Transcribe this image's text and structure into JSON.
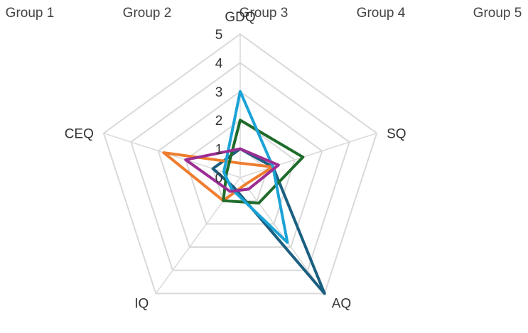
{
  "chart_data": {
    "type": "radar",
    "axes": [
      "GDQ",
      "SQ",
      "AQ",
      "IQ",
      "CEQ"
    ],
    "rmin": 0,
    "rmax": 5,
    "ticks": [
      "0",
      "1",
      "2",
      "3",
      "4",
      "5"
    ],
    "grid": true,
    "legend_placement": "top",
    "series": [
      {
        "name": "Group 1",
        "color": "#1a5f80",
        "values": [
          1.0,
          1.2,
          5.0,
          0.4,
          1.0
        ]
      },
      {
        "name": "Group 2",
        "color": "#ef7d2f",
        "values": [
          0.5,
          1.2,
          0.3,
          1.0,
          2.8
        ]
      },
      {
        "name": "Group 3",
        "color": "#1e6b2a",
        "values": [
          2.0,
          2.3,
          1.1,
          1.0,
          0.5
        ]
      },
      {
        "name": "Group 4",
        "color": "#1ba3d6",
        "values": [
          3.0,
          1.2,
          2.8,
          0.5,
          0.6
        ]
      },
      {
        "name": "Group 5",
        "color": "#9b2d94",
        "values": [
          1.0,
          1.4,
          0.5,
          0.6,
          2.0
        ]
      }
    ]
  }
}
